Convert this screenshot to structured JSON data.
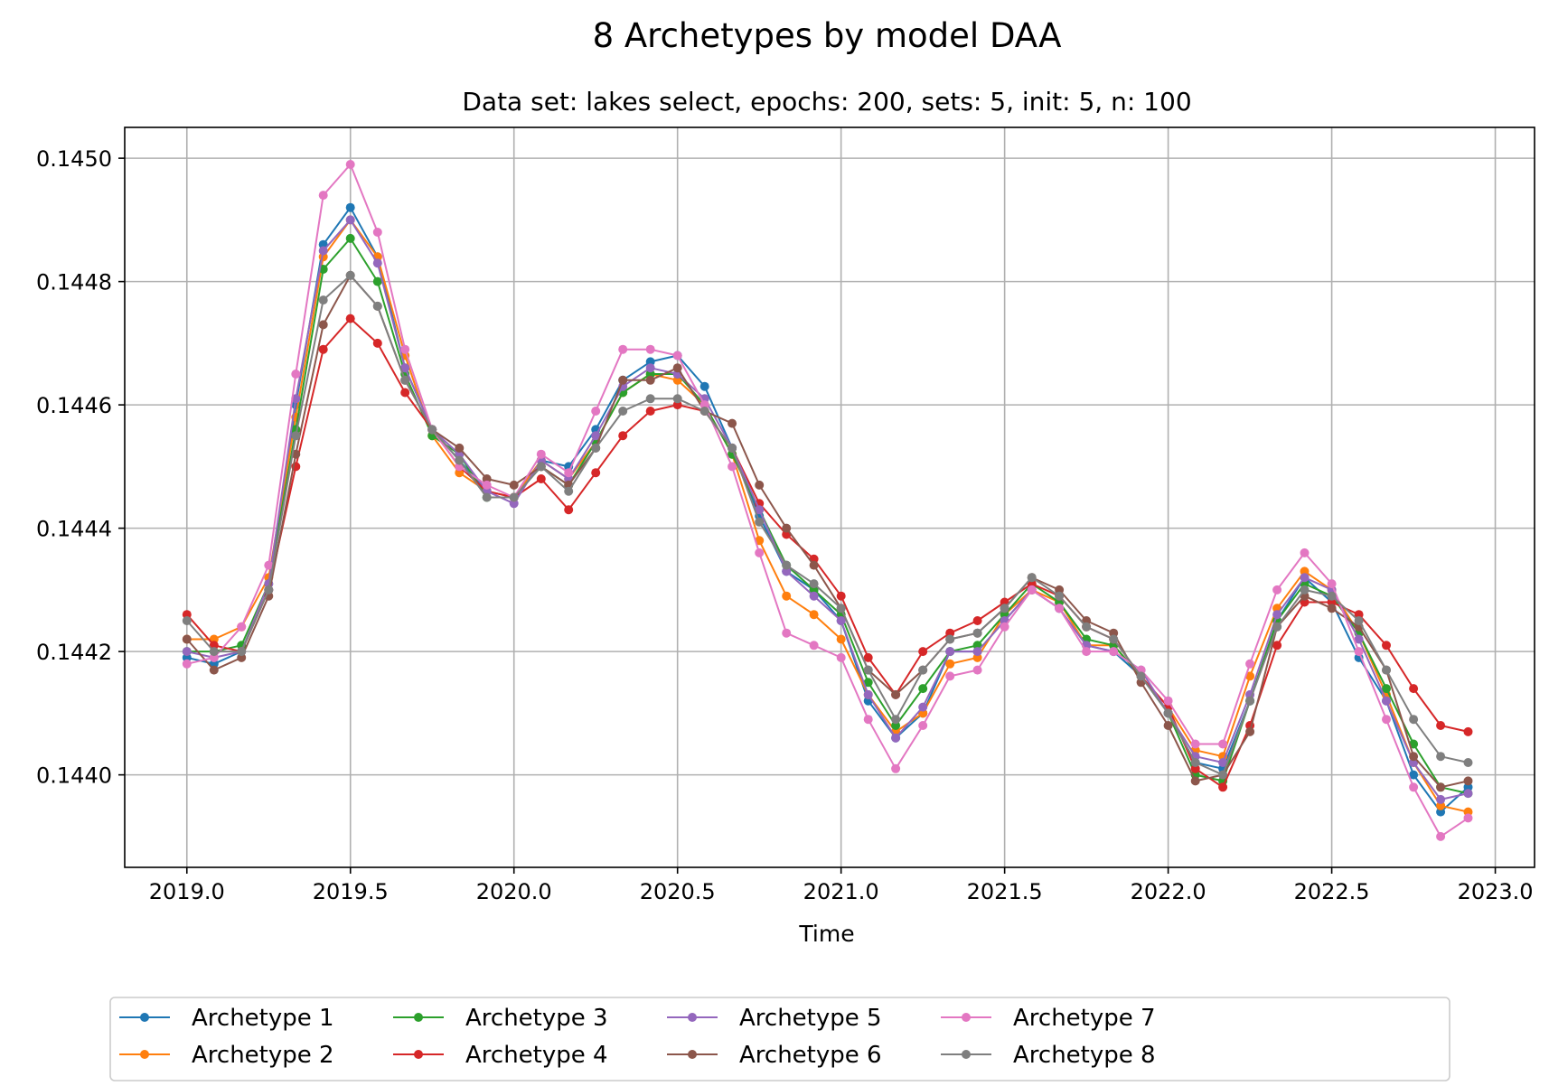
{
  "chart_data": {
    "type": "line",
    "title": "8 Archetypes by model DAA",
    "subtitle": "Data set: lakes select, epochs: 200, sets: 5, init: 5, n: 100",
    "xlabel": "Time",
    "ylabel": "",
    "xlim": [
      2018.81,
      2023.12
    ],
    "ylim": [
      0.14385,
      0.14505
    ],
    "xticks": [
      "2019.0",
      "2019.5",
      "2020.0",
      "2020.5",
      "2021.0",
      "2021.5",
      "2022.0",
      "2022.5",
      "2023.0"
    ],
    "yticks": [
      "0.1440",
      "0.1442",
      "0.1444",
      "0.1446",
      "0.1448",
      "0.1450"
    ],
    "grid": true,
    "legend": "bottom-center, outside, 5 columns",
    "x": [
      2019.0,
      2019.083,
      2019.167,
      2019.25,
      2019.333,
      2019.417,
      2019.5,
      2019.583,
      2019.667,
      2019.75,
      2019.833,
      2019.917,
      2020.0,
      2020.083,
      2020.167,
      2020.25,
      2020.333,
      2020.417,
      2020.5,
      2020.583,
      2020.667,
      2020.75,
      2020.833,
      2020.917,
      2021.0,
      2021.083,
      2021.167,
      2021.25,
      2021.333,
      2021.417,
      2021.5,
      2021.583,
      2021.667,
      2021.75,
      2021.833,
      2021.917,
      2022.0,
      2022.083,
      2022.167,
      2022.25,
      2022.333,
      2022.417,
      2022.5,
      2022.583,
      2022.667,
      2022.75,
      2022.833,
      2022.917
    ],
    "series": [
      {
        "name": "Archetype 1",
        "color": "#1f77b4",
        "values": [
          0.14419,
          0.14418,
          0.1442,
          0.1443,
          0.1446,
          0.14486,
          0.14492,
          0.14484,
          0.14466,
          0.14456,
          0.14451,
          0.14446,
          0.14445,
          0.14451,
          0.1445,
          0.14456,
          0.14464,
          0.14467,
          0.14468,
          0.14463,
          0.14453,
          0.14442,
          0.14433,
          0.1443,
          0.14425,
          0.14412,
          0.14406,
          0.1441,
          0.1442,
          0.1442,
          0.14425,
          0.1443,
          0.14427,
          0.14421,
          0.1442,
          0.14416,
          0.1441,
          0.14402,
          0.14401,
          0.14412,
          0.14425,
          0.14432,
          0.14428,
          0.14419,
          0.14412,
          0.144,
          0.14394,
          0.14398
        ]
      },
      {
        "name": "Archetype 2",
        "color": "#ff7f0e",
        "values": [
          0.14422,
          0.14422,
          0.14424,
          0.14432,
          0.14458,
          0.14484,
          0.1449,
          0.14484,
          0.14468,
          0.14455,
          0.14449,
          0.14446,
          0.14445,
          0.14451,
          0.14448,
          0.14454,
          0.14462,
          0.14465,
          0.14464,
          0.1446,
          0.14452,
          0.14438,
          0.14429,
          0.14426,
          0.14422,
          0.14413,
          0.14407,
          0.1441,
          0.14418,
          0.14419,
          0.14426,
          0.1443,
          0.14428,
          0.14421,
          0.14421,
          0.14416,
          0.14411,
          0.14404,
          0.14403,
          0.14416,
          0.14427,
          0.14433,
          0.1443,
          0.14423,
          0.14413,
          0.14402,
          0.14395,
          0.14394
        ]
      },
      {
        "name": "Archetype 3",
        "color": "#2ca02c",
        "values": [
          0.1442,
          0.1442,
          0.14421,
          0.14431,
          0.14456,
          0.14482,
          0.14487,
          0.1448,
          0.14465,
          0.14455,
          0.14452,
          0.14445,
          0.14445,
          0.1445,
          0.14447,
          0.14454,
          0.14462,
          0.14465,
          0.14465,
          0.1446,
          0.14452,
          0.14443,
          0.14434,
          0.1443,
          0.14426,
          0.14415,
          0.14408,
          0.14414,
          0.1442,
          0.14421,
          0.14426,
          0.14431,
          0.14428,
          0.14422,
          0.14421,
          0.14416,
          0.1441,
          0.144,
          0.14399,
          0.14412,
          0.14425,
          0.14431,
          0.14429,
          0.14423,
          0.14414,
          0.14405,
          0.14398,
          0.14397
        ]
      },
      {
        "name": "Archetype 4",
        "color": "#d62728",
        "values": [
          0.14426,
          0.14421,
          0.1442,
          0.1443,
          0.1445,
          0.14469,
          0.14474,
          0.1447,
          0.14462,
          0.14456,
          0.1445,
          0.14446,
          0.14445,
          0.14448,
          0.14443,
          0.14449,
          0.14455,
          0.14459,
          0.1446,
          0.14459,
          0.14453,
          0.14444,
          0.14439,
          0.14435,
          0.14429,
          0.14419,
          0.14413,
          0.1442,
          0.14423,
          0.14425,
          0.14428,
          0.14431,
          0.14429,
          0.14424,
          0.14422,
          0.14416,
          0.14411,
          0.14401,
          0.14398,
          0.14408,
          0.14421,
          0.14428,
          0.14428,
          0.14426,
          0.14421,
          0.14414,
          0.14408,
          0.14407
        ]
      },
      {
        "name": "Archetype 5",
        "color": "#9467bd",
        "values": [
          0.1442,
          0.14419,
          0.1442,
          0.14431,
          0.14461,
          0.14485,
          0.1449,
          0.14483,
          0.14466,
          0.14456,
          0.14452,
          0.14446,
          0.14444,
          0.14451,
          0.14448,
          0.14455,
          0.14463,
          0.14466,
          0.14465,
          0.14461,
          0.14453,
          0.14443,
          0.14433,
          0.14429,
          0.14425,
          0.14413,
          0.14406,
          0.14411,
          0.1442,
          0.1442,
          0.14425,
          0.1443,
          0.14427,
          0.14421,
          0.1442,
          0.14417,
          0.1441,
          0.14403,
          0.14402,
          0.14413,
          0.14426,
          0.14432,
          0.1443,
          0.14422,
          0.14412,
          0.14402,
          0.14396,
          0.14397
        ]
      },
      {
        "name": "Archetype 6",
        "color": "#8c564b",
        "values": [
          0.14422,
          0.14417,
          0.14419,
          0.14429,
          0.14452,
          0.14473,
          0.14481,
          0.14476,
          0.14464,
          0.14456,
          0.14453,
          0.14448,
          0.14447,
          0.1445,
          0.14447,
          0.14453,
          0.14464,
          0.14464,
          0.14466,
          0.14459,
          0.14457,
          0.14447,
          0.1444,
          0.14434,
          0.14427,
          0.14417,
          0.14413,
          0.14417,
          0.14422,
          0.14423,
          0.14427,
          0.14432,
          0.1443,
          0.14425,
          0.14423,
          0.14415,
          0.14408,
          0.14399,
          0.144,
          0.14407,
          0.14424,
          0.14429,
          0.14427,
          0.14424,
          0.14417,
          0.14403,
          0.14398,
          0.14399
        ]
      },
      {
        "name": "Archetype 7",
        "color": "#e377c2",
        "values": [
          0.14418,
          0.14419,
          0.14424,
          0.14434,
          0.14465,
          0.14494,
          0.14499,
          0.14488,
          0.14469,
          0.14456,
          0.1445,
          0.14447,
          0.14445,
          0.14452,
          0.14449,
          0.14459,
          0.14469,
          0.14469,
          0.14468,
          0.1446,
          0.1445,
          0.14436,
          0.14423,
          0.14421,
          0.14419,
          0.14409,
          0.14401,
          0.14408,
          0.14416,
          0.14417,
          0.14424,
          0.1443,
          0.14427,
          0.1442,
          0.1442,
          0.14417,
          0.14412,
          0.14405,
          0.14405,
          0.14418,
          0.1443,
          0.14436,
          0.14431,
          0.1442,
          0.14409,
          0.14398,
          0.1439,
          0.14393
        ]
      },
      {
        "name": "Archetype 8",
        "color": "#7f7f7f",
        "values": [
          0.14425,
          0.1442,
          0.1442,
          0.1443,
          0.14455,
          0.14477,
          0.14481,
          0.14476,
          0.14464,
          0.14456,
          0.14451,
          0.14445,
          0.14445,
          0.1445,
          0.14446,
          0.14453,
          0.14459,
          0.14461,
          0.14461,
          0.14459,
          0.14453,
          0.14441,
          0.14434,
          0.14431,
          0.14427,
          0.14417,
          0.14409,
          0.14417,
          0.14422,
          0.14423,
          0.14427,
          0.14432,
          0.14429,
          0.14424,
          0.14422,
          0.14416,
          0.1441,
          0.14402,
          0.144,
          0.14412,
          0.14424,
          0.1443,
          0.14429,
          0.14425,
          0.14417,
          0.14409,
          0.14403,
          0.14402
        ]
      }
    ]
  }
}
